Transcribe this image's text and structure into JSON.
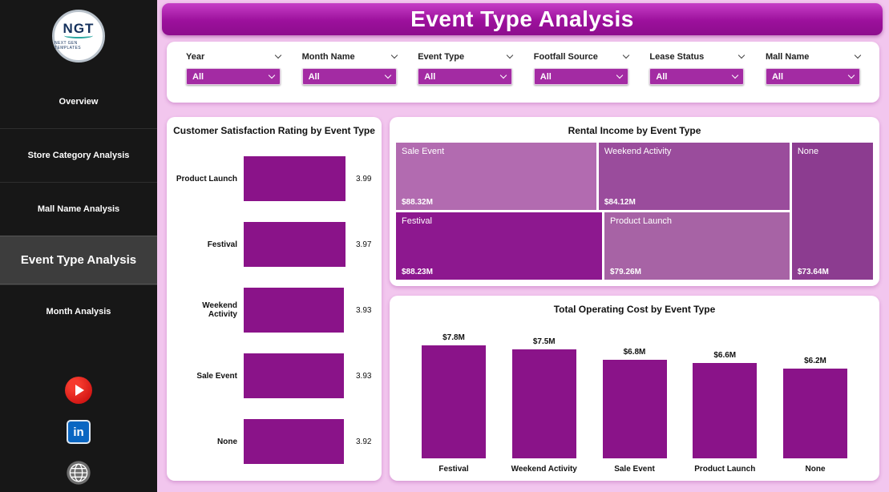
{
  "header": {
    "title": "Event Type Analysis"
  },
  "sidebar": {
    "logo": {
      "text": "NGT",
      "caption": "NEXT GEN TEMPLATES"
    },
    "items": [
      {
        "label": "Overview",
        "active": false
      },
      {
        "label": "Store Category Analysis",
        "active": false
      },
      {
        "label": "Mall Name Analysis",
        "active": false
      },
      {
        "label": "Event Type Analysis",
        "active": true
      },
      {
        "label": "Month Analysis",
        "active": false
      }
    ],
    "social": {
      "icons": [
        "youtube-icon",
        "linkedin-icon",
        "website-icon"
      ],
      "linkedin_text": "in"
    }
  },
  "filters": [
    {
      "label": "Year",
      "value": "All"
    },
    {
      "label": "Month Name",
      "value": "All"
    },
    {
      "label": "Event Type",
      "value": "All"
    },
    {
      "label": "Footfall Source",
      "value": "All"
    },
    {
      "label": "Lease Status",
      "value": "All"
    },
    {
      "label": "Mall Name",
      "value": "All"
    }
  ],
  "colors": {
    "accent_purple": "#8a1389",
    "banner_purple": "#9c109c",
    "background_pink": "#f2c6ee",
    "sidebar_black": "#171717",
    "filter_select_purple": "#a32ba3"
  },
  "chart_data": [
    {
      "type": "bar",
      "orientation": "horizontal",
      "title": "Customer Satisfaction Rating by Event Type",
      "categories": [
        "Product Launch",
        "Festival",
        "Weekend Activity",
        "Sale Event",
        "None"
      ],
      "values": [
        3.99,
        3.97,
        3.93,
        3.93,
        3.92
      ],
      "value_labels": [
        "3.99",
        "3.97",
        "3.93",
        "3.93",
        "3.92"
      ],
      "xlim": [
        0,
        4.2
      ],
      "bar_color": "#8a1389",
      "grid": false,
      "legend": "none"
    },
    {
      "type": "treemap",
      "title": "Rental Income by Event Type",
      "items": [
        {
          "label": "Sale Event",
          "value": 88.32,
          "value_label": "$88.32M",
          "color": "#b26bb0",
          "region": "top-left"
        },
        {
          "label": "Weekend Activity",
          "value": 84.12,
          "value_label": "$84.12M",
          "color": "#9a4c9c",
          "region": "top-middle"
        },
        {
          "label": "None",
          "value": 73.64,
          "value_label": "$73.64M",
          "color": "#8c3c90",
          "region": "right-full"
        },
        {
          "label": "Festival",
          "value": 88.23,
          "value_label": "$88.23M",
          "color": "#8d188f",
          "region": "bottom-left"
        },
        {
          "label": "Product Launch",
          "value": 79.26,
          "value_label": "$79.26M",
          "color": "#a763a5",
          "region": "bottom-middle"
        }
      ],
      "legend": "none"
    },
    {
      "type": "bar",
      "orientation": "vertical",
      "title": "Total Operating Cost by Event Type",
      "categories": [
        "Festival",
        "Weekend Activity",
        "Sale Event",
        "Product Launch",
        "None"
      ],
      "values": [
        7.8,
        7.5,
        6.8,
        6.6,
        6.2
      ],
      "value_labels": [
        "$7.8M",
        "$7.5M",
        "$6.8M",
        "$6.6M",
        "$6.2M"
      ],
      "ylim": [
        0,
        8.3
      ],
      "bar_color": "#8a1389",
      "grid": false,
      "legend": "none"
    }
  ]
}
